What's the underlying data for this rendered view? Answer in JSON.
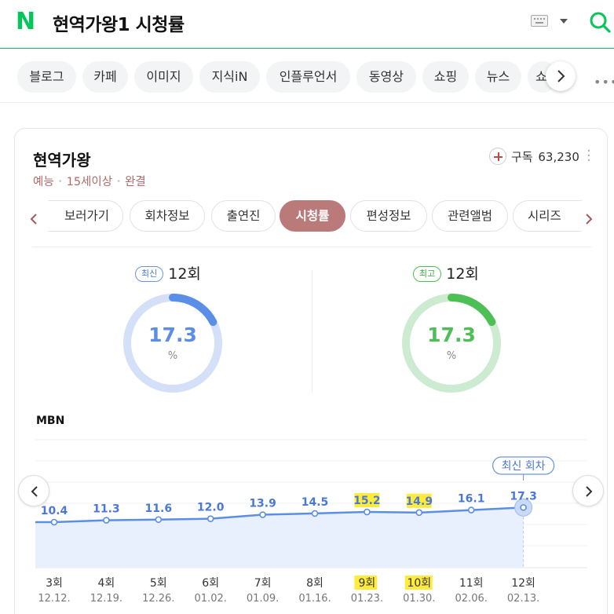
{
  "header": {
    "logo": "N",
    "query": "현역가왕1 시청률",
    "icons": {
      "keyboard": "keyboard-icon",
      "dropdown": "chevron-down-icon",
      "search": "search-icon"
    },
    "accent_color": "#03c75a"
  },
  "categories": {
    "items": [
      "블로그",
      "카페",
      "이미지",
      "지식iN",
      "인플루언서",
      "동영상",
      "쇼핑",
      "뉴스",
      "쇼"
    ],
    "more_icon": "more-dots-icon"
  },
  "program": {
    "title": "현역가왕",
    "meta": [
      "예능",
      "15세이상",
      "완결"
    ],
    "subscribe_label": "구독",
    "subscribe_count": "63,230"
  },
  "tabs": {
    "items": [
      "보러가기",
      "회차정보",
      "출연진",
      "시청률",
      "편성정보",
      "관련앨범",
      "시리즈"
    ],
    "active": "시청률",
    "active_color": "#bb7a7a"
  },
  "gauges": {
    "latest": {
      "badge": "최신",
      "episode": "12회",
      "value": "17.3",
      "unit": "%",
      "fraction": 0.173,
      "color": "#5b8ee6"
    },
    "highest": {
      "badge": "최고",
      "episode": "12회",
      "value": "17.3",
      "unit": "%",
      "fraction": 0.173,
      "color": "#4cbf55"
    }
  },
  "chart_data": {
    "type": "line",
    "title": "",
    "channel": "MBN",
    "categories": [
      "3회",
      "4회",
      "5회",
      "6회",
      "7회",
      "8회",
      "9회",
      "10회",
      "11회",
      "12회"
    ],
    "dates": [
      "12.12.",
      "12.19.",
      "12.26.",
      "01.02.",
      "01.09.",
      "01.16.",
      "01.23.",
      "01.30.",
      "02.06.",
      "02.13."
    ],
    "series": [
      {
        "values": [
          10.4,
          11.3,
          11.6,
          12.0,
          13.9,
          14.5,
          15.2,
          14.9,
          16.1,
          17.3
        ]
      }
    ],
    "value_labels": [
      "10.4",
      "11.3",
      "11.6",
      "12.0",
      "13.9",
      "14.5",
      "15.2",
      "14.9",
      "16.1",
      "17.3"
    ],
    "highlighted_indices": [
      6,
      7
    ],
    "highlight_color": "#ffeb3b",
    "latest_label": "최신 회차",
    "grid": true,
    "line_color": "#5b8ee6",
    "area_color": "#e9f0fd"
  }
}
